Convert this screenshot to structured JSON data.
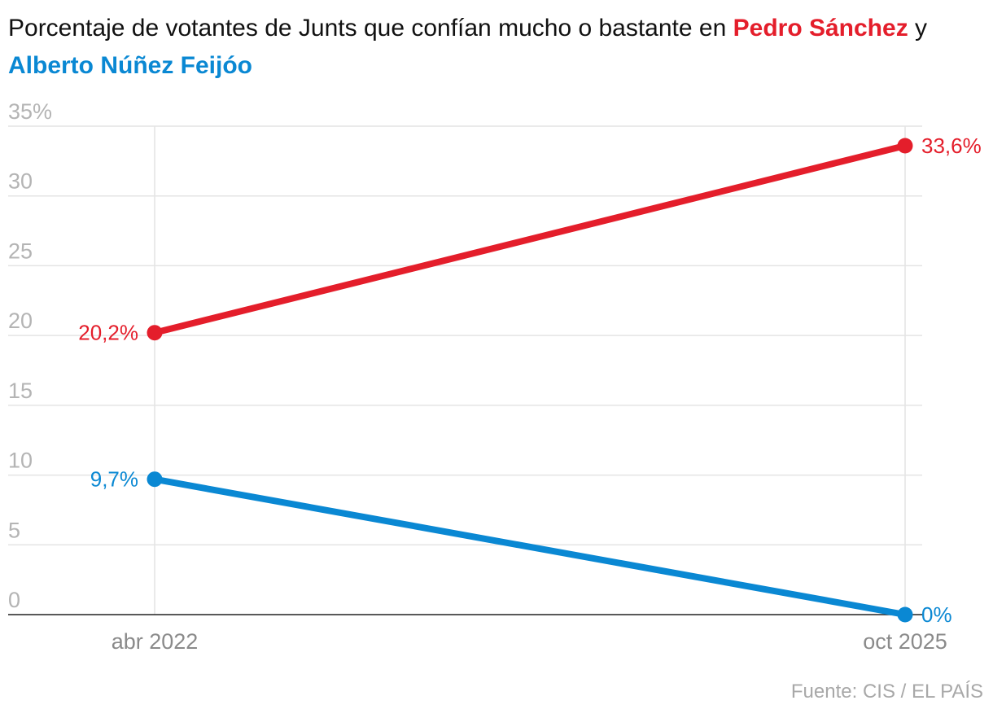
{
  "colors": {
    "sanchez": "#e41e2b",
    "feijoo": "#0a88d3",
    "grid": "#e4e4e4",
    "baseline": "#222222"
  },
  "title": {
    "prefix": "Porcentaje de votantes de Junts que confían mucho o bastante en ",
    "sanchez": "Pedro Sánchez",
    "joiner": " y ",
    "feijoo": "Alberto Núñez Feijóo"
  },
  "source": "Fuente: CIS / EL PAÍS",
  "chart_data": {
    "type": "line",
    "title": "Porcentaje de votantes de Junts que confían mucho o bastante en Pedro Sánchez y Alberto Núñez Feijóo",
    "categories": [
      "abr 2022",
      "oct 2025"
    ],
    "ylim": [
      0,
      35
    ],
    "yticks": [
      0,
      5,
      10,
      15,
      20,
      25,
      30,
      35
    ],
    "ytick_labels": [
      "0",
      "5",
      "10",
      "15",
      "20",
      "25",
      "30",
      "35%"
    ],
    "grid": true,
    "xlabel": "",
    "ylabel": "",
    "series": [
      {
        "name": "Pedro Sánchez",
        "color_key": "sanchez",
        "values": [
          20.2,
          33.6
        ],
        "labels": [
          "20,2%",
          "33,6%"
        ]
      },
      {
        "name": "Alberto Núñez Feijóo",
        "color_key": "feijoo",
        "values": [
          9.7,
          0
        ],
        "labels": [
          "9,7%",
          "0%"
        ]
      }
    ]
  }
}
